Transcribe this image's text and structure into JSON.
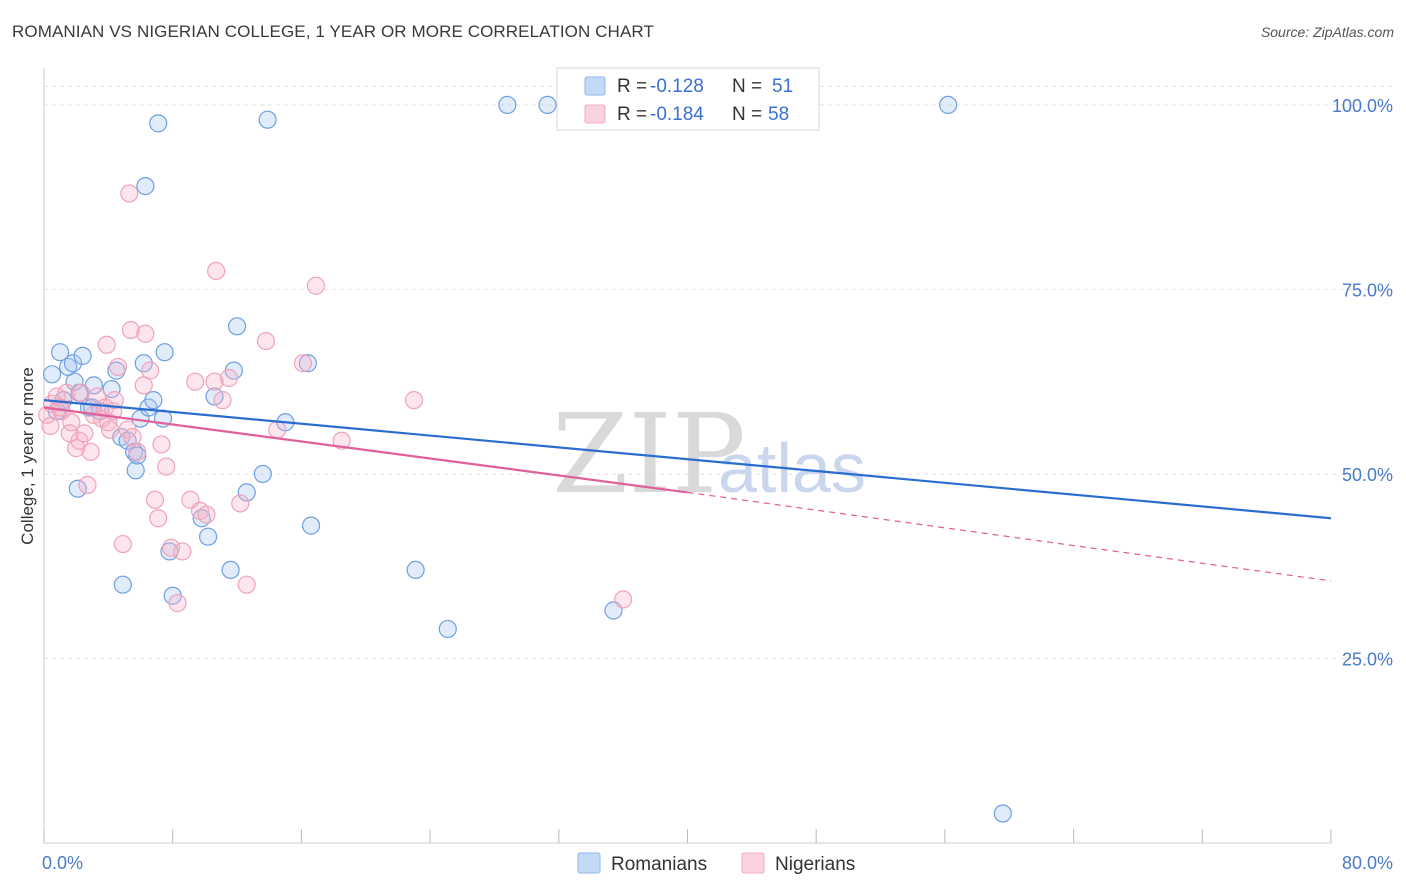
{
  "header": {
    "title": "ROMANIAN VS NIGERIAN COLLEGE, 1 YEAR OR MORE CORRELATION CHART",
    "source": "Source: ZipAtlas.com"
  },
  "legend_top": {
    "rows": [
      {
        "r_label": "R = ",
        "r_value": "-0.128",
        "n_label": "N = ",
        "n_value": "51",
        "color": "#8fb6ea"
      },
      {
        "r_label": "R = ",
        "r_value": "-0.184",
        "n_label": "N = ",
        "n_value": "58",
        "color": "#f4a9c0"
      }
    ]
  },
  "legend_bottom": {
    "items": [
      {
        "label": "Romanians",
        "color": "#8fb6ea"
      },
      {
        "label": "Nigerians",
        "color": "#f4a9c0"
      }
    ]
  },
  "watermark": {
    "zip": "ZIP",
    "atlas": "atlas"
  },
  "chart_data": {
    "type": "scatter",
    "title": "ROMANIAN VS NIGERIAN COLLEGE, 1 YEAR OR MORE CORRELATION CHART",
    "xlabel": "",
    "ylabel": "College, 1 year or more",
    "xlim": [
      0,
      80
    ],
    "ylim": [
      0,
      105
    ],
    "x_tick_labels": [
      "0.0%",
      "80.0%"
    ],
    "y_ticks": [
      25,
      50,
      75,
      100
    ],
    "y_tick_labels": [
      "25.0%",
      "50.0%",
      "75.0%",
      "100.0%"
    ],
    "grid": true,
    "series": [
      {
        "name": "Romanians",
        "color": "#6f9fe0",
        "trend": {
          "x0": 0,
          "y0": 60.0,
          "x1": 80,
          "y1": 44.0,
          "color": "#2a6dcf"
        },
        "points": [
          [
            0.5,
            63.5
          ],
          [
            1.0,
            66.5
          ],
          [
            1.5,
            64.5
          ],
          [
            1.8,
            65.0
          ],
          [
            2.4,
            66.0
          ],
          [
            1.9,
            62.5
          ],
          [
            2.2,
            61.0
          ],
          [
            2.8,
            59.0
          ],
          [
            3.1,
            62.0
          ],
          [
            3.5,
            58.5
          ],
          [
            4.2,
            61.5
          ],
          [
            4.5,
            64.0
          ],
          [
            4.8,
            55.0
          ],
          [
            5.7,
            50.5
          ],
          [
            5.2,
            54.5
          ],
          [
            5.6,
            53.0
          ],
          [
            5.8,
            52.5
          ],
          [
            6.0,
            57.5
          ],
          [
            6.2,
            65.0
          ],
          [
            6.5,
            59.0
          ],
          [
            6.8,
            60.0
          ],
          [
            7.4,
            57.5
          ],
          [
            7.5,
            66.5
          ],
          [
            7.8,
            39.5
          ],
          [
            8.0,
            33.5
          ],
          [
            9.8,
            44.0
          ],
          [
            10.2,
            41.5
          ],
          [
            10.6,
            60.5
          ],
          [
            11.6,
            37.0
          ],
          [
            11.8,
            64.0
          ],
          [
            12.0,
            70.0
          ],
          [
            12.6,
            47.5
          ],
          [
            13.6,
            50.0
          ],
          [
            15.0,
            57.0
          ],
          [
            16.4,
            65.0
          ],
          [
            16.6,
            43.0
          ],
          [
            23.1,
            37.0
          ],
          [
            25.1,
            29.0
          ],
          [
            28.8,
            100.0
          ],
          [
            31.3,
            100.0
          ],
          [
            35.4,
            31.5
          ],
          [
            56.2,
            100.0
          ],
          [
            59.6,
            4.0
          ],
          [
            7.1,
            97.5
          ],
          [
            13.9,
            98.0
          ],
          [
            6.3,
            89.0
          ],
          [
            2.1,
            48.0
          ],
          [
            4.9,
            35.0
          ],
          [
            1.2,
            60.0
          ],
          [
            0.8,
            58.5
          ],
          [
            3.0,
            59.0
          ]
        ]
      },
      {
        "name": "Nigerians",
        "color": "#f0a3bb",
        "trend": {
          "x0": 0,
          "y0": 59.0,
          "x1": 40,
          "y1": 47.5,
          "dash_x1": 80,
          "dash_y1": 35.5,
          "color": "#e0609a"
        },
        "points": [
          [
            0.2,
            58.0
          ],
          [
            0.5,
            59.5
          ],
          [
            0.8,
            60.5
          ],
          [
            1.1,
            58.5
          ],
          [
            1.4,
            61.0
          ],
          [
            1.7,
            57.0
          ],
          [
            2.0,
            53.5
          ],
          [
            2.2,
            54.5
          ],
          [
            2.5,
            55.5
          ],
          [
            2.7,
            48.5
          ],
          [
            2.9,
            53.0
          ],
          [
            3.1,
            58.0
          ],
          [
            3.3,
            60.5
          ],
          [
            3.6,
            57.5
          ],
          [
            3.8,
            59.0
          ],
          [
            4.0,
            57.0
          ],
          [
            4.3,
            58.5
          ],
          [
            4.4,
            60.0
          ],
          [
            4.6,
            64.5
          ],
          [
            4.9,
            40.5
          ],
          [
            5.2,
            56.0
          ],
          [
            5.5,
            55.0
          ],
          [
            5.8,
            53.0
          ],
          [
            6.2,
            62.0
          ],
          [
            6.6,
            64.0
          ],
          [
            6.9,
            46.5
          ],
          [
            7.1,
            44.0
          ],
          [
            7.3,
            54.0
          ],
          [
            7.6,
            51.0
          ],
          [
            7.9,
            40.0
          ],
          [
            8.3,
            32.5
          ],
          [
            8.6,
            39.5
          ],
          [
            9.1,
            46.5
          ],
          [
            9.4,
            62.5
          ],
          [
            9.7,
            45.0
          ],
          [
            10.1,
            44.5
          ],
          [
            10.6,
            62.5
          ],
          [
            11.1,
            60.0
          ],
          [
            11.5,
            63.0
          ],
          [
            12.2,
            46.0
          ],
          [
            12.6,
            35.0
          ],
          [
            13.8,
            68.0
          ],
          [
            14.5,
            56.0
          ],
          [
            16.1,
            65.0
          ],
          [
            16.9,
            75.5
          ],
          [
            18.5,
            54.5
          ],
          [
            23.0,
            60.0
          ],
          [
            36.0,
            33.0
          ],
          [
            5.3,
            88.0
          ],
          [
            10.7,
            77.5
          ],
          [
            5.4,
            69.5
          ],
          [
            6.3,
            69.0
          ],
          [
            3.9,
            67.5
          ],
          [
            0.4,
            56.5
          ],
          [
            1.0,
            59.0
          ],
          [
            1.6,
            55.5
          ],
          [
            2.3,
            61.0
          ],
          [
            4.1,
            56.0
          ]
        ]
      }
    ]
  }
}
